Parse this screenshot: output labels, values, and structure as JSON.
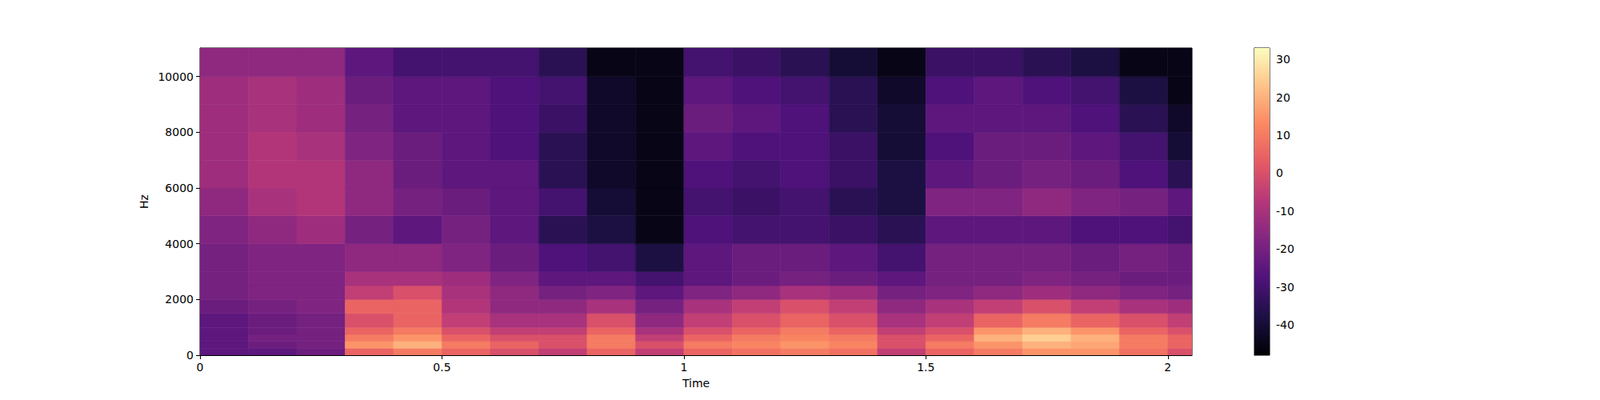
{
  "chart_data": {
    "type": "spectrogram",
    "xlabel": "Time",
    "ylabel": "Hz",
    "xlim": [
      0,
      2.05
    ],
    "ylim": [
      0,
      11025
    ],
    "xticks": [
      0,
      0.5,
      1,
      1.5,
      2
    ],
    "yticks": [
      0,
      2000,
      4000,
      6000,
      8000,
      10000
    ],
    "cells": {
      "x_bins": [
        0,
        0.1,
        0.2,
        0.3,
        0.4,
        0.5,
        0.6,
        0.7,
        0.8,
        0.9,
        1.0,
        1.1,
        1.2,
        1.3,
        1.4,
        1.5,
        1.6,
        1.7,
        1.8,
        1.9,
        2.0,
        2.05
      ],
      "y_bins": [
        0,
        250,
        500,
        750,
        1000,
        1500,
        2000,
        2500,
        3000,
        4000,
        5000,
        6000,
        7000,
        8000,
        9000,
        10000,
        11025
      ],
      "values": [
        [
          -25,
          -25,
          -22,
          5,
          10,
          5,
          0,
          -5,
          5,
          -5,
          5,
          8,
          10,
          8,
          -5,
          5,
          10,
          15,
          15,
          8,
          0
        ],
        [
          -25,
          -22,
          -20,
          15,
          20,
          10,
          5,
          0,
          10,
          0,
          10,
          12,
          15,
          12,
          0,
          10,
          15,
          20,
          18,
          10,
          5
        ],
        [
          -25,
          -20,
          -20,
          10,
          15,
          5,
          0,
          0,
          10,
          -5,
          5,
          10,
          12,
          10,
          0,
          5,
          20,
          25,
          20,
          10,
          5
        ],
        [
          -25,
          -22,
          -20,
          5,
          10,
          0,
          -5,
          -5,
          5,
          -10,
          0,
          5,
          10,
          5,
          -5,
          0,
          15,
          20,
          15,
          5,
          0
        ],
        [
          -25,
          -22,
          -20,
          0,
          5,
          -5,
          -10,
          -10,
          0,
          -15,
          -5,
          0,
          5,
          0,
          -10,
          -5,
          5,
          10,
          5,
          0,
          -5
        ],
        [
          -22,
          -20,
          -18,
          5,
          5,
          -8,
          -15,
          -15,
          -10,
          -20,
          -10,
          -5,
          0,
          -5,
          -15,
          -10,
          -5,
          0,
          -5,
          -10,
          -12
        ],
        [
          -20,
          -18,
          -18,
          -5,
          0,
          -10,
          -15,
          -20,
          -18,
          -25,
          -18,
          -15,
          -10,
          -12,
          -20,
          -18,
          -15,
          -12,
          -15,
          -18,
          -20
        ],
        [
          -20,
          -18,
          -18,
          -10,
          -10,
          -12,
          -18,
          -25,
          -25,
          -30,
          -25,
          -22,
          -20,
          -22,
          -25,
          -20,
          -20,
          -18,
          -20,
          -22,
          -22
        ],
        [
          -20,
          -18,
          -18,
          -15,
          -15,
          -18,
          -22,
          -28,
          -30,
          -38,
          -25,
          -22,
          -22,
          -25,
          -30,
          -20,
          -20,
          -20,
          -22,
          -20,
          -22
        ],
        [
          -18,
          -15,
          -12,
          -20,
          -25,
          -20,
          -25,
          -35,
          -38,
          -45,
          -28,
          -30,
          -30,
          -32,
          -35,
          -25,
          -25,
          -25,
          -28,
          -28,
          -30
        ],
        [
          -15,
          -10,
          -8,
          -15,
          -20,
          -22,
          -25,
          -30,
          -40,
          -45,
          -30,
          -32,
          -30,
          -35,
          -38,
          -18,
          -18,
          -15,
          -18,
          -20,
          -25
        ],
        [
          -12,
          -8,
          -8,
          -15,
          -22,
          -25,
          -25,
          -35,
          -42,
          -45,
          -28,
          -30,
          -28,
          -32,
          -38,
          -25,
          -22,
          -20,
          -22,
          -28,
          -35
        ],
        [
          -12,
          -8,
          -10,
          -18,
          -22,
          -25,
          -28,
          -35,
          -42,
          -45,
          -25,
          -28,
          -28,
          -32,
          -40,
          -28,
          -22,
          -22,
          -25,
          -30,
          -40
        ],
        [
          -12,
          -10,
          -12,
          -20,
          -25,
          -25,
          -28,
          -32,
          -42,
          -45,
          -22,
          -25,
          -28,
          -35,
          -40,
          -25,
          -25,
          -25,
          -28,
          -35,
          -42
        ],
        [
          -12,
          -10,
          -12,
          -22,
          -25,
          -25,
          -28,
          -30,
          -42,
          -45,
          -25,
          -28,
          -30,
          -35,
          -42,
          -28,
          -25,
          -28,
          -30,
          -38,
          -45
        ],
        [
          -15,
          -15,
          -15,
          -25,
          -30,
          -30,
          -30,
          -35,
          -45,
          -45,
          -30,
          -32,
          -35,
          -40,
          -45,
          -32,
          -32,
          -35,
          -38,
          -45,
          -45
        ]
      ]
    },
    "colorbar": {
      "range": [
        -48,
        33
      ],
      "ticks": [
        -40,
        -30,
        -20,
        -10,
        0,
        10,
        20,
        30
      ]
    }
  }
}
